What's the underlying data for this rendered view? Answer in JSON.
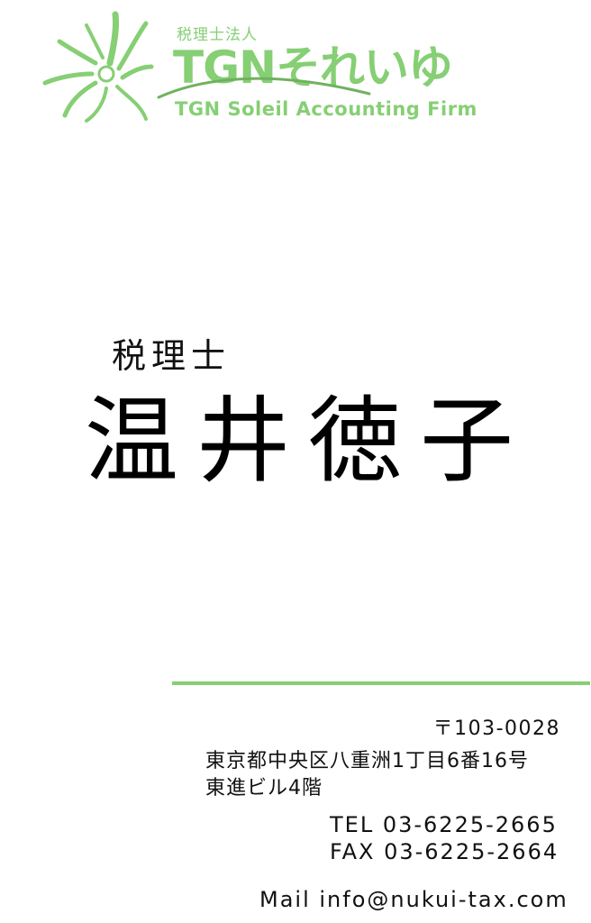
{
  "logo": {
    "sub": "税理士法人",
    "main": "TGNそれいゆ",
    "english": "TGN Soleil Accounting Firm",
    "color": "#86cf74"
  },
  "person": {
    "title": "税理士",
    "name": "温井徳子"
  },
  "contact": {
    "postal": "〒103-0028",
    "address_line1": "東京都中央区八重洲1丁目6番16号",
    "address_line2": "東進ビル4階",
    "tel": "TEL 03-6225-2665",
    "fax": "FAX 03-6225-2664",
    "mail": "Mail info@nukui-tax.com"
  }
}
